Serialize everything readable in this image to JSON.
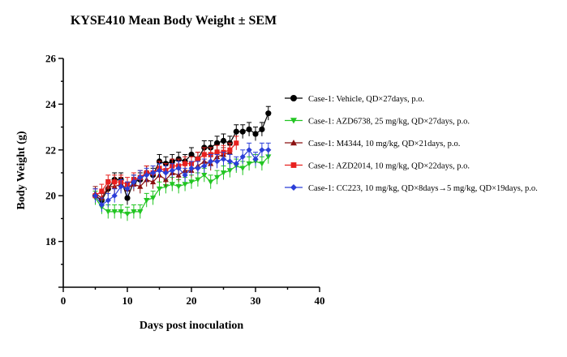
{
  "chart_data": {
    "type": "line",
    "title": "KYSE410 Mean Body Weight ± SEM",
    "xlabel": "Days post inoculation",
    "ylabel": "Body Weight (g)",
    "xlim": [
      0,
      40
    ],
    "ylim": [
      16,
      26
    ],
    "x_ticks": [
      0,
      10,
      20,
      30,
      40
    ],
    "y_ticks": [
      18,
      20,
      22,
      24,
      26
    ],
    "grid": false,
    "legend_position": "right",
    "series": [
      {
        "name": "Case-1: Vehicle, QD×27days, p.o.",
        "color": "#000000",
        "marker": "circle",
        "x": [
          5,
          6,
          7,
          8,
          9,
          10,
          11,
          12,
          13,
          14,
          15,
          16,
          17,
          18,
          19,
          20,
          21,
          22,
          23,
          24,
          25,
          26,
          27,
          28,
          29,
          30,
          31,
          32
        ],
        "y": [
          20.0,
          19.8,
          20.3,
          20.7,
          20.7,
          19.9,
          20.6,
          20.7,
          21.0,
          20.9,
          21.5,
          21.4,
          21.5,
          21.6,
          21.5,
          21.8,
          21.6,
          22.1,
          22.1,
          22.3,
          22.4,
          22.3,
          22.8,
          22.8,
          22.9,
          22.7,
          22.9,
          23.6
        ],
        "err": [
          0.3,
          0.3,
          0.3,
          0.3,
          0.3,
          0.3,
          0.3,
          0.3,
          0.3,
          0.3,
          0.3,
          0.3,
          0.3,
          0.3,
          0.3,
          0.3,
          0.3,
          0.3,
          0.3,
          0.3,
          0.3,
          0.3,
          0.3,
          0.3,
          0.3,
          0.3,
          0.3,
          0.3
        ]
      },
      {
        "name": "Case-1: AZD6738, 25 mg/kg, QD×27days, p.o.",
        "color": "#22c522",
        "marker": "triangle-down",
        "x": [
          5,
          6,
          7,
          8,
          9,
          10,
          11,
          12,
          13,
          14,
          15,
          16,
          17,
          18,
          19,
          20,
          21,
          22,
          23,
          24,
          25,
          26,
          27,
          28,
          29,
          30,
          31,
          32
        ],
        "y": [
          19.9,
          19.5,
          19.3,
          19.3,
          19.3,
          19.2,
          19.3,
          19.3,
          19.8,
          19.9,
          20.3,
          20.4,
          20.5,
          20.4,
          20.5,
          20.6,
          20.7,
          20.9,
          20.6,
          20.8,
          21.0,
          21.1,
          21.3,
          21.2,
          21.4,
          21.5,
          21.4,
          21.7
        ],
        "err": [
          0.3,
          0.3,
          0.3,
          0.3,
          0.3,
          0.3,
          0.3,
          0.3,
          0.3,
          0.3,
          0.3,
          0.3,
          0.3,
          0.3,
          0.3,
          0.3,
          0.3,
          0.3,
          0.3,
          0.3,
          0.3,
          0.3,
          0.3,
          0.3,
          0.3,
          0.3,
          0.3,
          0.3
        ]
      },
      {
        "name": "Case-1: M4344, 10 mg/kg, QD×21days, p.o.",
        "color": "#8b1010",
        "marker": "triangle-up",
        "x": [
          5,
          6,
          7,
          8,
          9,
          10,
          11,
          12,
          13,
          14,
          15,
          16,
          17,
          18,
          19,
          20,
          21,
          22,
          23,
          24,
          25,
          26
        ],
        "y": [
          20.1,
          19.9,
          20.4,
          20.4,
          20.5,
          20.3,
          20.5,
          20.4,
          20.7,
          20.6,
          20.9,
          20.7,
          21.0,
          20.9,
          21.1,
          21.1,
          21.3,
          21.5,
          21.4,
          21.7,
          21.8,
          21.9
        ],
        "err": [
          0.3,
          0.3,
          0.3,
          0.3,
          0.3,
          0.3,
          0.3,
          0.3,
          0.3,
          0.3,
          0.3,
          0.3,
          0.3,
          0.3,
          0.3,
          0.3,
          0.3,
          0.3,
          0.3,
          0.3,
          0.3,
          0.3
        ]
      },
      {
        "name": "Case-1: AZD2014, 10 mg/kg, QD×22days, p.o.",
        "color": "#e8201e",
        "marker": "square",
        "x": [
          5,
          6,
          7,
          8,
          9,
          10,
          11,
          12,
          13,
          14,
          15,
          16,
          17,
          18,
          19,
          20,
          21,
          22,
          23,
          24,
          25,
          26,
          27
        ],
        "y": [
          20.0,
          20.2,
          20.6,
          20.6,
          20.6,
          20.5,
          20.7,
          20.8,
          21.0,
          21.0,
          21.2,
          21.1,
          21.3,
          21.3,
          21.4,
          21.4,
          21.6,
          21.8,
          21.8,
          21.9,
          21.9,
          22.0,
          22.3
        ],
        "err": [
          0.3,
          0.3,
          0.3,
          0.3,
          0.3,
          0.3,
          0.3,
          0.3,
          0.3,
          0.3,
          0.3,
          0.3,
          0.3,
          0.3,
          0.3,
          0.3,
          0.3,
          0.3,
          0.3,
          0.3,
          0.3,
          0.3,
          0.3
        ]
      },
      {
        "name": "Case-1: CC223, 10 mg/kg, QD×8days→5 mg/kg, QD×19days, p.o.",
        "color": "#2b3ed8",
        "marker": "diamond",
        "x": [
          5,
          6,
          7,
          8,
          9,
          10,
          11,
          12,
          13,
          14,
          15,
          16,
          17,
          18,
          19,
          20,
          21,
          22,
          23,
          24,
          25,
          26,
          27,
          28,
          29,
          30,
          31,
          32
        ],
        "y": [
          20.0,
          19.6,
          19.8,
          20.0,
          20.4,
          20.3,
          20.6,
          20.8,
          20.9,
          21.0,
          21.1,
          21.0,
          21.1,
          21.2,
          20.9,
          21.2,
          21.2,
          21.3,
          21.5,
          21.5,
          21.6,
          21.5,
          21.4,
          21.7,
          22.0,
          21.6,
          22.0,
          22.0
        ],
        "err": [
          0.3,
          0.3,
          0.3,
          0.3,
          0.3,
          0.3,
          0.3,
          0.3,
          0.3,
          0.3,
          0.3,
          0.3,
          0.3,
          0.3,
          0.3,
          0.3,
          0.3,
          0.3,
          0.3,
          0.3,
          0.3,
          0.3,
          0.3,
          0.3,
          0.3,
          0.3,
          0.3,
          0.3
        ]
      }
    ]
  }
}
